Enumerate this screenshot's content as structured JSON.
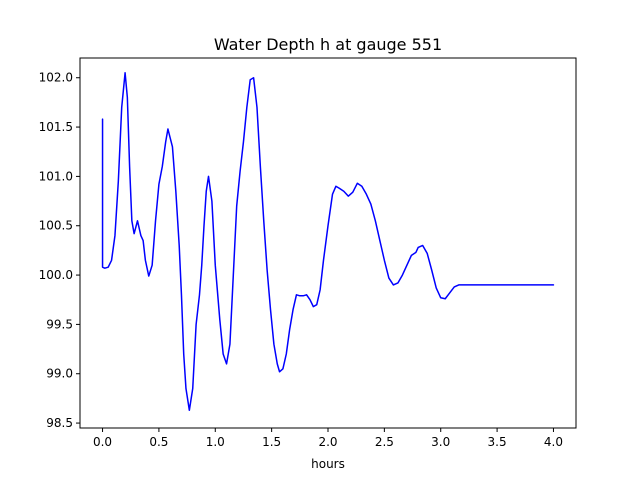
{
  "chart_data": {
    "type": "line",
    "title": "Water Depth h at gauge 551",
    "xlabel": "hours",
    "ylabel": "",
    "xlim": [
      -0.2,
      4.2
    ],
    "ylim": [
      98.45,
      102.2
    ],
    "xticks": [
      0.0,
      0.5,
      1.0,
      1.5,
      2.0,
      2.5,
      3.0,
      3.5,
      4.0
    ],
    "xtick_labels": [
      "0.0",
      "0.5",
      "1.0",
      "1.5",
      "2.0",
      "2.5",
      "3.0",
      "3.5",
      "4.0"
    ],
    "yticks": [
      98.5,
      99.0,
      99.5,
      100.0,
      100.5,
      101.0,
      101.5,
      102.0
    ],
    "ytick_labels": [
      "98.5",
      "99.0",
      "99.5",
      "100.0",
      "100.5",
      "101.0",
      "101.5",
      "102.0"
    ],
    "grid": false,
    "series": [
      {
        "color": "#0000ff",
        "x": [
          0.0,
          0.0,
          0.02,
          0.05,
          0.08,
          0.11,
          0.14,
          0.17,
          0.2,
          0.22,
          0.24,
          0.26,
          0.28,
          0.31,
          0.34,
          0.36,
          0.38,
          0.41,
          0.44,
          0.47,
          0.5,
          0.53,
          0.56,
          0.58,
          0.62,
          0.65,
          0.68,
          0.7,
          0.72,
          0.74,
          0.77,
          0.8,
          0.83,
          0.86,
          0.88,
          0.9,
          0.92,
          0.94,
          0.97,
          1.0,
          1.04,
          1.07,
          1.1,
          1.13,
          1.16,
          1.19,
          1.22,
          1.25,
          1.28,
          1.31,
          1.34,
          1.37,
          1.4,
          1.43,
          1.46,
          1.49,
          1.52,
          1.55,
          1.57,
          1.6,
          1.63,
          1.66,
          1.69,
          1.72,
          1.75,
          1.78,
          1.81,
          1.84,
          1.87,
          1.9,
          1.93,
          1.96,
          2.0,
          2.04,
          2.07,
          2.1,
          2.14,
          2.18,
          2.22,
          2.26,
          2.3,
          2.34,
          2.38,
          2.42,
          2.46,
          2.5,
          2.54,
          2.58,
          2.62,
          2.66,
          2.7,
          2.74,
          2.78,
          2.8,
          2.84,
          2.88,
          2.92,
          2.96,
          3.0,
          3.04,
          3.08,
          3.12,
          3.16,
          3.2,
          3.24,
          3.28,
          3.32,
          3.36,
          3.4,
          3.44,
          3.48,
          3.52,
          3.56,
          3.6,
          3.64,
          3.68,
          3.72,
          3.76,
          3.8,
          3.84,
          3.88,
          3.92,
          3.96,
          4.0
        ],
        "y": [
          101.58,
          100.08,
          100.07,
          100.08,
          100.15,
          100.4,
          100.95,
          101.7,
          102.05,
          101.8,
          101.1,
          100.55,
          100.42,
          100.55,
          100.4,
          100.35,
          100.15,
          99.99,
          100.1,
          100.55,
          100.92,
          101.1,
          101.35,
          101.48,
          101.3,
          100.85,
          100.3,
          99.8,
          99.2,
          98.85,
          98.63,
          98.85,
          99.5,
          99.8,
          100.1,
          100.5,
          100.85,
          101.0,
          100.75,
          100.1,
          99.55,
          99.2,
          99.1,
          99.3,
          100.0,
          100.7,
          101.05,
          101.35,
          101.7,
          101.98,
          102.0,
          101.7,
          101.1,
          100.55,
          100.05,
          99.65,
          99.3,
          99.1,
          99.02,
          99.05,
          99.2,
          99.45,
          99.65,
          99.8,
          99.79,
          99.79,
          99.8,
          99.75,
          99.68,
          99.7,
          99.85,
          100.15,
          100.5,
          100.82,
          100.9,
          100.88,
          100.85,
          100.8,
          100.84,
          100.93,
          100.9,
          100.82,
          100.72,
          100.55,
          100.35,
          100.15,
          99.97,
          99.9,
          99.92,
          100.0,
          100.1,
          100.2,
          100.23,
          100.28,
          100.3,
          100.22,
          100.05,
          99.87,
          99.77,
          99.76,
          99.82,
          99.88,
          99.9,
          99.9,
          99.9,
          99.9,
          99.9,
          99.9,
          99.9,
          99.9,
          99.9,
          99.9,
          99.9,
          99.9,
          99.9,
          99.9,
          99.9,
          99.9,
          99.9,
          99.9,
          99.9,
          99.9,
          99.9,
          99.9
        ]
      }
    ]
  }
}
